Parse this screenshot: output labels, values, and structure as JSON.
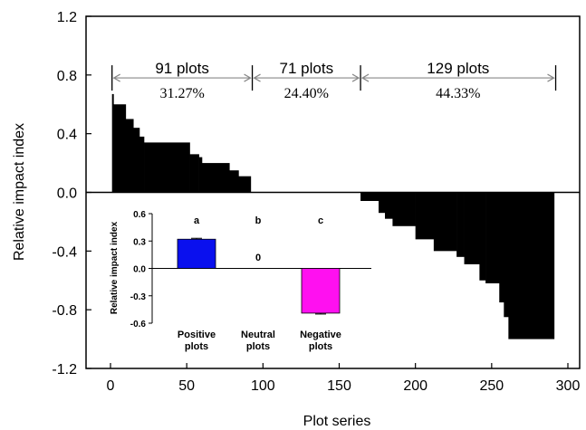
{
  "chart_data": [
    {
      "type": "bar",
      "xlabel": "Plot series",
      "ylabel": "Relative impact index",
      "xlim": [
        0,
        300
      ],
      "ylim": [
        -1.2,
        1.2
      ],
      "x_ticks": [
        "0",
        "50",
        "100",
        "150",
        "200",
        "250",
        "300"
      ],
      "y_ticks": [
        "-1.2",
        "-0.8",
        "-0.4",
        "0.0",
        "0.4",
        "0.8",
        "1.2"
      ],
      "grid": false,
      "steps": [
        {
          "x0": 1,
          "x1": 2,
          "y": 0.67
        },
        {
          "x0": 2,
          "x1": 10,
          "y": 0.6
        },
        {
          "x0": 10,
          "x1": 15,
          "y": 0.5
        },
        {
          "x0": 15,
          "x1": 19,
          "y": 0.44
        },
        {
          "x0": 19,
          "x1": 22,
          "y": 0.38
        },
        {
          "x0": 22,
          "x1": 52,
          "y": 0.34
        },
        {
          "x0": 52,
          "x1": 58,
          "y": 0.26
        },
        {
          "x0": 58,
          "x1": 60,
          "y": 0.24
        },
        {
          "x0": 60,
          "x1": 78,
          "y": 0.2
        },
        {
          "x0": 78,
          "x1": 84,
          "y": 0.15
        },
        {
          "x0": 84,
          "x1": 92,
          "y": 0.11
        },
        {
          "x0": 164,
          "x1": 166,
          "y": -0.1
        },
        {
          "x0": 166,
          "x1": 180,
          "y": -0.14
        },
        {
          "x0": 180,
          "x1": 185,
          "y": -0.18
        },
        {
          "x0": 185,
          "x1": 200,
          "y": -0.23
        },
        {
          "x0": 200,
          "x1": 212,
          "y": -0.32
        },
        {
          "x0": 212,
          "x1": 227,
          "y": -0.4
        },
        {
          "x0": 227,
          "x1": 232,
          "y": -0.44
        },
        {
          "x0": 232,
          "x1": 242,
          "y": -0.49
        },
        {
          "x0": 242,
          "x1": 246,
          "y": -0.6
        },
        {
          "x0": 246,
          "x1": 255,
          "y": -0.62
        },
        {
          "x0": 255,
          "x1": 258,
          "y": -0.75
        },
        {
          "x0": 258,
          "x1": 261,
          "y": -0.85
        },
        {
          "x0": 261,
          "x1": 291,
          "y": -1.0
        }
      ],
      "annotations": {
        "dividers_x": [
          1,
          93,
          164,
          292
        ],
        "arrow_y": 0.78,
        "groups": [
          {
            "label": "91 plots",
            "percent": "31.27%",
            "x0": 1,
            "x1": 93
          },
          {
            "label": "71 plots",
            "percent": "24.40%",
            "x0": 93,
            "x1": 164
          },
          {
            "label": "129 plots",
            "percent": "44.33%",
            "x0": 164,
            "x1": 292
          }
        ]
      }
    },
    {
      "type": "bar",
      "inset": true,
      "ylabel": "Relative impact index",
      "ylim": [
        -0.6,
        0.6
      ],
      "y_ticks": [
        "0.6",
        "0.3",
        "0.0",
        "-0.3",
        "-0.6"
      ],
      "categories": [
        "Positive plots",
        "Neutral plots",
        "Negative plots"
      ],
      "category_lines": [
        [
          "Positive",
          "plots"
        ],
        [
          "Neutral",
          "plots"
        ],
        [
          "Negative",
          "plots"
        ]
      ],
      "values": [
        0.32,
        0,
        -0.49
      ],
      "errors": [
        0.01,
        0,
        0.01
      ],
      "colors": [
        "#0a10ee",
        "#000000",
        "#ff10f0"
      ],
      "letters": [
        "a",
        "b",
        "c"
      ],
      "value_labels": [
        "",
        "0",
        ""
      ]
    }
  ]
}
